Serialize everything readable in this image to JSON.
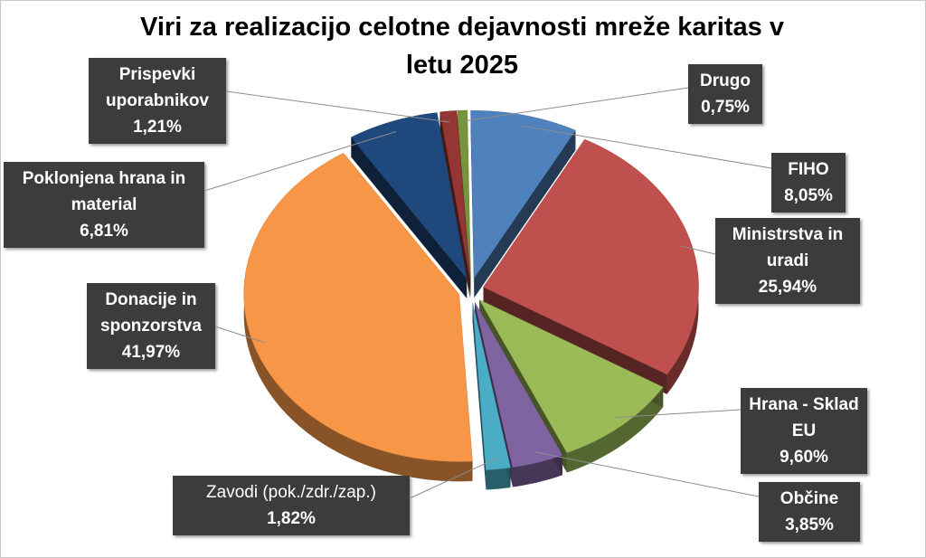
{
  "chart_data": {
    "type": "pie3d",
    "title": "Viri za realizacijo celotne dejavnosti mreže karitas v letu 2025",
    "categories": [
      "Drugo",
      "FIHO",
      "Ministrstva in uradi",
      "Hrana - Sklad EU",
      "Občine",
      "Zavodi (pok./zdr./zap.)",
      "Donacije in sponzorstva",
      "Poklonjena hrana in material",
      "Prispevki uporabnikov"
    ],
    "values": [
      0.75,
      8.05,
      25.94,
      9.6,
      3.85,
      1.82,
      41.97,
      6.81,
      1.21
    ],
    "value_labels": [
      "0,75%",
      "8,05%",
      "25,94%",
      "9,60%",
      "3,85%",
      "1,82%",
      "41,97%",
      "6,81%",
      "1,21%"
    ],
    "colors": [
      "#77933c",
      "#4f81bd",
      "#c0504d",
      "#9bbb59",
      "#8064a2",
      "#4bacc6",
      "#f79646",
      "#1f497d",
      "#943634"
    ]
  }
}
